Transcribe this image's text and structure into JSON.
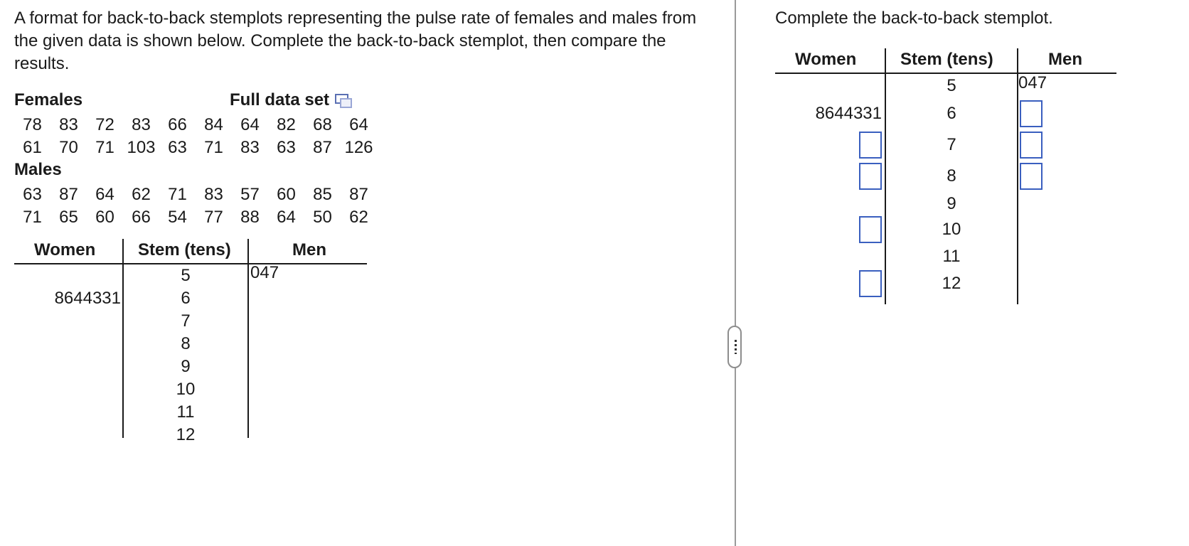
{
  "prompt": "A format for back-to-back stemplots representing the pulse rate of females and males from the given data is shown below. Complete the back-to-back stemplot, then compare the results.",
  "females_heading": "Females",
  "full_data_set_label": "Full data set",
  "females_values": [
    [
      "78",
      "83",
      "72",
      "83",
      "66",
      "84",
      "64",
      "82",
      "68",
      "64"
    ],
    [
      "61",
      "70",
      "71",
      "103",
      "63",
      "71",
      "83",
      "63",
      "87",
      "126"
    ]
  ],
  "males_heading": "Males",
  "males_values": [
    [
      "63",
      "87",
      "64",
      "62",
      "71",
      "83",
      "57",
      "60",
      "85",
      "87"
    ],
    [
      "71",
      "65",
      "60",
      "66",
      "54",
      "77",
      "88",
      "64",
      "50",
      "62"
    ]
  ],
  "stemplot": {
    "women_header": "Women",
    "stem_header": "Stem (tens)",
    "men_header": "Men",
    "stems": [
      "5",
      "6",
      "7",
      "8",
      "9",
      "10",
      "11",
      "12"
    ],
    "women_leaves": {
      "6": "8644331"
    },
    "men_leaves": {
      "5": "047"
    }
  },
  "right_instruction": "Complete the back-to-back stemplot.",
  "answer_inputs": {
    "women_stems": [
      "7",
      "8",
      "10",
      "12"
    ],
    "men_stems": [
      "6",
      "7",
      "8"
    ]
  },
  "colors": {
    "input_border": "#3a5fbf",
    "divider": "#9a9a9a"
  },
  "icons": [
    "copy-icon",
    "splitter-handle"
  ]
}
